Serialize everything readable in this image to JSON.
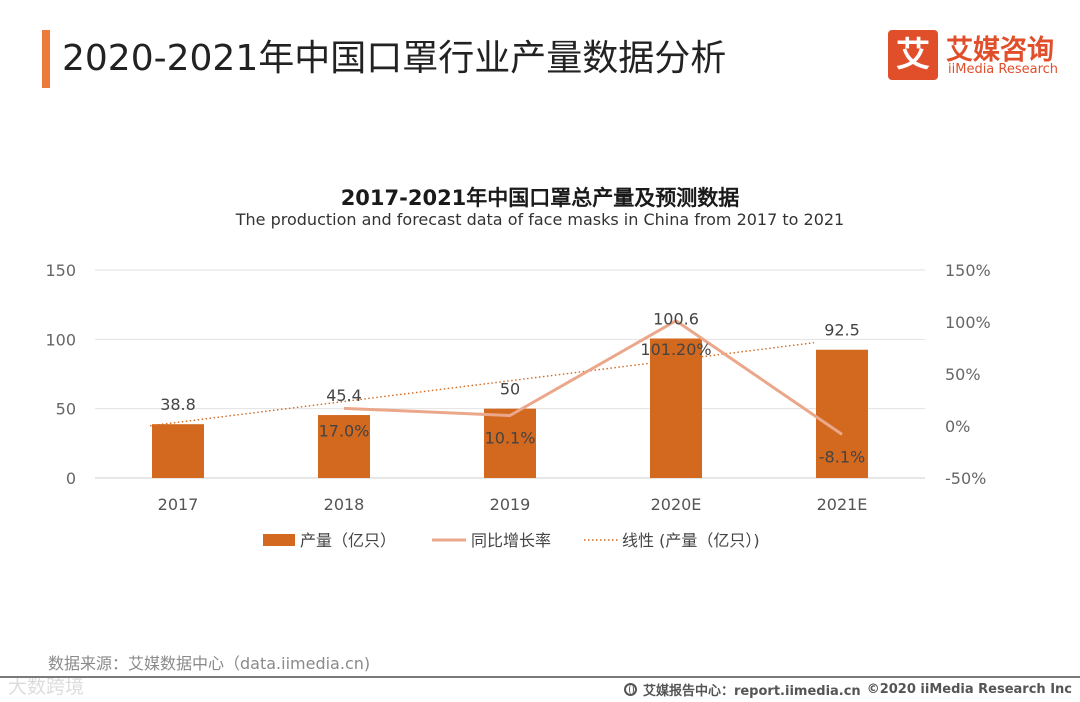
{
  "header": {
    "title": "2020-2021年中国口罩行业产量数据分析",
    "accent_color": "#EE7A3A"
  },
  "brand": {
    "logo_char": "艾",
    "name_cn": "艾媒咨询",
    "name_en": "iiMedia Research",
    "color": "#E04E2A"
  },
  "chart_data": {
    "type": "bar",
    "title": "2017-2021年中国口罩总产量及预测数据",
    "subtitle": "The production and forecast data of face masks in China from 2017 to 2021",
    "categories": [
      "2017",
      "2018",
      "2019",
      "2020E",
      "2021E"
    ],
    "series": [
      {
        "name": "产量（亿只）",
        "kind": "bar",
        "axis": "left",
        "color": "#D2691E",
        "values": [
          38.8,
          45.4,
          50,
          100.6,
          92.5
        ],
        "labels": [
          "38.8",
          "45.4",
          "50",
          "100.6",
          "92.5"
        ]
      },
      {
        "name": "同比增长率",
        "kind": "line",
        "axis": "right",
        "color": "#EBA78A",
        "values": [
          null,
          17.0,
          10.1,
          101.2,
          -8.1
        ],
        "labels": [
          "",
          "17.0%",
          "10.1%",
          "101.20%",
          "-8.1%"
        ]
      },
      {
        "name": "线性 (产量（亿只）)",
        "kind": "trendline",
        "axis": "left",
        "color": "#D2691E",
        "values": [
          37.67,
          52.64,
          67.61,
          82.58,
          97.55
        ]
      }
    ],
    "y_left": {
      "ticks": [
        0,
        50,
        100,
        150
      ],
      "tick_labels": [
        "0",
        "50",
        "100",
        "150"
      ],
      "ylim": [
        0,
        150
      ]
    },
    "y_right": {
      "ticks": [
        -50,
        0,
        50,
        100,
        150
      ],
      "tick_labels": [
        "-50%",
        "0%",
        "50%",
        "100%",
        "150%"
      ],
      "ylim": [
        -50,
        150
      ]
    },
    "grid": true,
    "legend_position": "bottom"
  },
  "footer": {
    "source": "数据来源：艾媒数据中心（data.iimedia.cn)",
    "watermark": "大数跨境",
    "report_site": "艾媒报告中心：report.iimedia.cn",
    "copyright": "©2020  iiMedia Research  Inc"
  }
}
